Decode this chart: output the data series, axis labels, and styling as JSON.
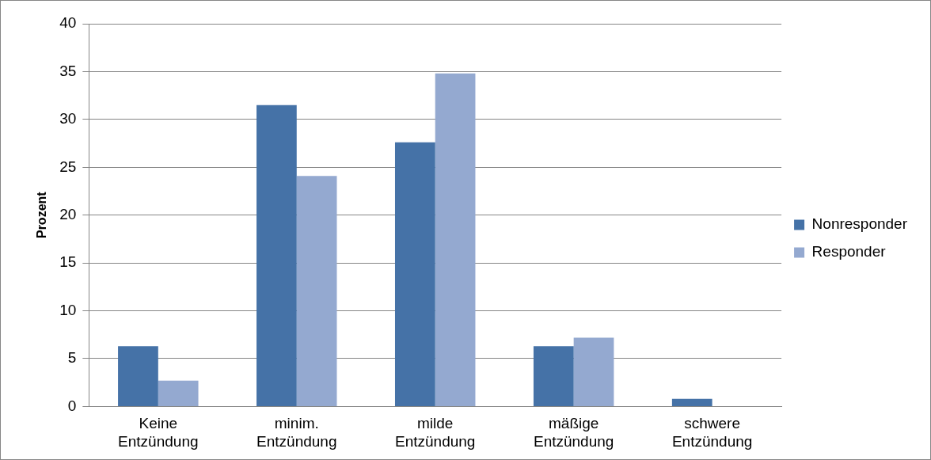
{
  "chart_data": {
    "type": "bar",
    "ylabel": "Prozent",
    "categories": [
      "Keine Entzündung",
      "minim. Entzündung",
      "milde Entzündung",
      "mäßige Entzündung",
      "schwere Entzündung"
    ],
    "series": [
      {
        "name": "Nonresponder",
        "color": "#4572a7",
        "values": [
          6.3,
          31.5,
          27.6,
          6.3,
          0.8
        ]
      },
      {
        "name": "Responder",
        "color": "#94a9d0",
        "values": [
          2.7,
          24.1,
          34.8,
          7.2,
          0
        ]
      }
    ],
    "ylim": [
      0,
      40
    ],
    "yticks": [
      0,
      5,
      10,
      15,
      20,
      25,
      30,
      35,
      40
    ],
    "grid": "y",
    "legend": "right"
  }
}
